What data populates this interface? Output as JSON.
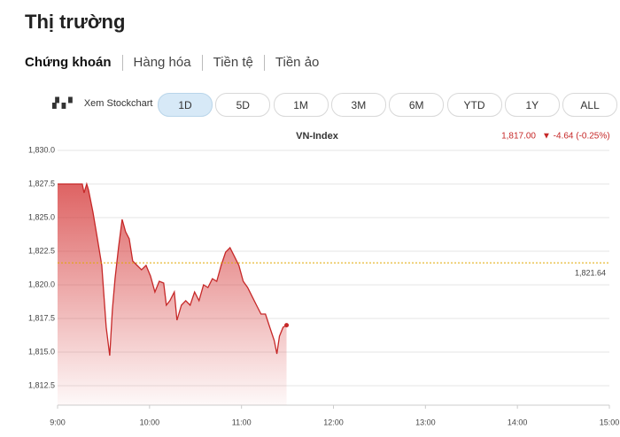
{
  "header": {
    "title": "Thị trường"
  },
  "tabs": [
    "Chứng khoán",
    "Hàng hóa",
    "Tiền tệ",
    "Tiền ảo"
  ],
  "active_tab": 0,
  "stockchart_link": "Xem Stockchart",
  "ranges": [
    "1D",
    "5D",
    "1M",
    "3M",
    "6M",
    "YTD",
    "1Y",
    "ALL"
  ],
  "active_range": 0,
  "chart_data": {
    "type": "line",
    "title": "VN-Index",
    "quote": "1,817.00",
    "change": "▼ -4.64 (-0.25%)",
    "color": "#c62828",
    "x": [
      9.0,
      9.269,
      9.288,
      9.317,
      9.337,
      9.385,
      9.433,
      9.481,
      9.529,
      9.567,
      9.596,
      9.625,
      9.663,
      9.702,
      9.74,
      9.779,
      9.817,
      9.865,
      9.913,
      9.962,
      10.01,
      10.058,
      10.106,
      10.154,
      10.183,
      10.221,
      10.269,
      10.298,
      10.346,
      10.394,
      10.442,
      10.49,
      10.538,
      10.587,
      10.635,
      10.683,
      10.731,
      10.779,
      10.827,
      10.875,
      10.923,
      10.971,
      11.019,
      11.067,
      11.115,
      11.163,
      11.212,
      11.26,
      11.308,
      11.356,
      11.385,
      11.413,
      11.452,
      11.49
    ],
    "values": [
      1827.5,
      1827.5,
      1826.84,
      1827.5,
      1827.04,
      1825.39,
      1823.42,
      1821.45,
      1816.84,
      1814.74,
      1818.16,
      1820.46,
      1822.76,
      1824.87,
      1823.95,
      1823.42,
      1821.78,
      1821.45,
      1821.12,
      1821.45,
      1820.66,
      1819.47,
      1820.26,
      1820.13,
      1818.49,
      1818.82,
      1819.47,
      1817.37,
      1818.49,
      1818.82,
      1818.49,
      1819.47,
      1818.82,
      1820.0,
      1819.8,
      1820.46,
      1820.26,
      1821.45,
      1822.43,
      1822.76,
      1822.11,
      1821.45,
      1820.26,
      1819.8,
      1819.14,
      1818.49,
      1817.83,
      1817.83,
      1816.84,
      1815.86,
      1814.87,
      1816.18,
      1816.84,
      1817.0
    ],
    "reference": {
      "value": 1821.64,
      "label": "1,821.64"
    },
    "reference_color": "#e0a800",
    "xlim": [
      9,
      15
    ],
    "xticks": [
      {
        "value": 9,
        "label": "9:00"
      },
      {
        "value": 10,
        "label": "10:00"
      },
      {
        "value": 11,
        "label": "11:00"
      },
      {
        "value": 12,
        "label": "12:00"
      },
      {
        "value": 13,
        "label": "13:00"
      },
      {
        "value": 14,
        "label": "14:00"
      },
      {
        "value": 15,
        "label": "15:00"
      }
    ],
    "ylim": [
      1811,
      1830
    ],
    "yticks": [
      {
        "value": 1812.5,
        "label": "1,812.5"
      },
      {
        "value": 1815,
        "label": "1,815.0"
      },
      {
        "value": 1817.5,
        "label": "1,817.5"
      },
      {
        "value": 1820,
        "label": "1,820.0"
      },
      {
        "value": 1822.5,
        "label": "1,822.5"
      },
      {
        "value": 1825,
        "label": "1,825.0"
      },
      {
        "value": 1827.5,
        "label": "1,827.5"
      },
      {
        "value": 1830,
        "label": "1,830.0"
      }
    ],
    "grid": true
  }
}
